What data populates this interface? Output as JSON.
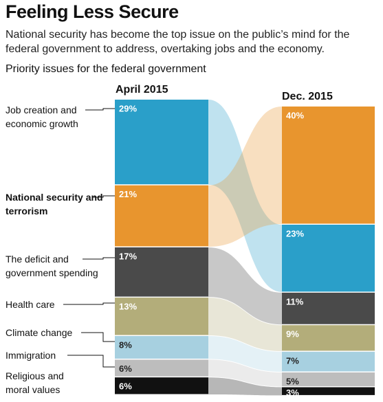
{
  "chart_data": {
    "type": "alluvial",
    "title": "Feeling Less Secure",
    "subtitle": "National security has become the top issue on the public’s mind for the federal government to address, overtaking jobs and the economy.",
    "y_label": "Priority issues for the federal government",
    "categories": [
      "Job creation and economic growth",
      "National security and terrorism",
      "The deficit and government spending",
      "Health care",
      "Climate change",
      "Immigration",
      "Religious and moral values"
    ],
    "colors": [
      "#2a9fc9",
      "#e8952e",
      "#4a4a4a",
      "#b3ad7a",
      "#a7d0e0",
      "#bdbdbd",
      "#111111"
    ],
    "series": [
      {
        "name": "April 2015",
        "values": [
          29,
          21,
          17,
          13,
          8,
          6,
          6
        ],
        "value_labels": [
          "29%",
          "21%",
          "17%",
          "13%",
          "8%",
          "6%",
          "6%"
        ]
      },
      {
        "name": "Dec. 2015",
        "values": [
          23,
          40,
          11,
          9,
          7,
          5,
          3
        ],
        "value_labels": [
          "23%",
          "40%",
          "11%",
          "9%",
          "7%",
          "5%",
          "3%"
        ]
      }
    ],
    "highlight": 1
  }
}
